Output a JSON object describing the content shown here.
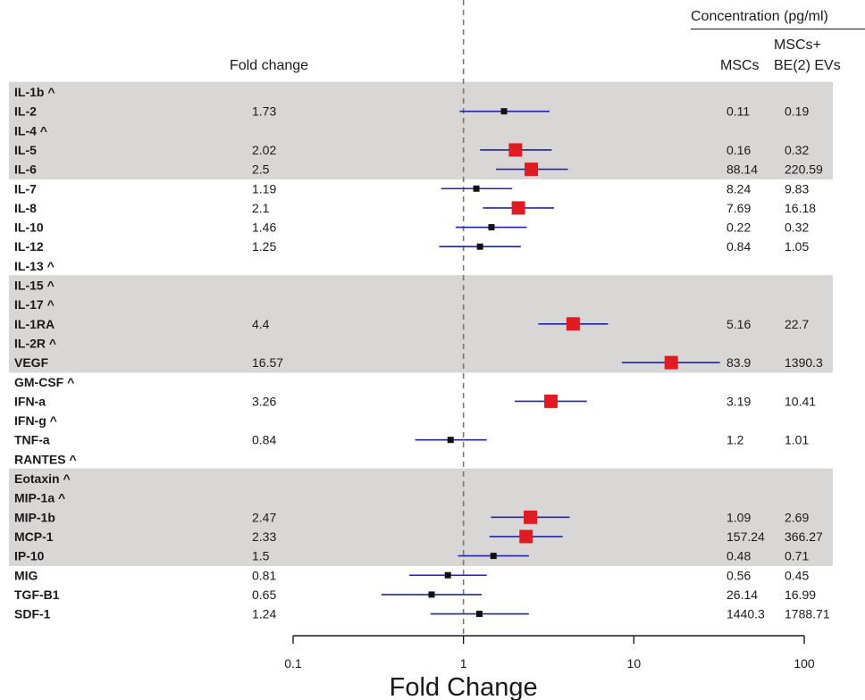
{
  "header": {
    "fold_change": "Fold change",
    "concentration": "Concentration (pg/ml)",
    "mscs": "MSCs",
    "mscs_ev_line1": "MSCs+",
    "mscs_ev_line2": "BE(2) EVs"
  },
  "colors": {
    "band": "#d9d6d6",
    "ci_line": "#1f24a8",
    "significant": "#e01b22",
    "not_significant": "#111111",
    "reference_line": "#777777"
  },
  "chart_data": {
    "type": "forest",
    "xlabel": "Fold Change",
    "x_scale": "log",
    "xlim": [
      0.1,
      100
    ],
    "xticks": [
      "0.1",
      "1",
      "10",
      "100"
    ],
    "reference_line": 1,
    "shaded_groups": [
      [
        0,
        4
      ],
      [
        10,
        14
      ],
      [
        20,
        24
      ]
    ],
    "rows": [
      {
        "label": "IL-1b ^",
        "fold": "",
        "ci": null,
        "sig": false,
        "mscs": "",
        "mscs_ev": ""
      },
      {
        "label": "IL-2",
        "fold": "1.73",
        "ci": [
          0.95,
          3.2
        ],
        "sig": false,
        "mscs": "0.11",
        "mscs_ev": "0.19"
      },
      {
        "label": "IL-4 ^",
        "fold": "",
        "ci": null,
        "sig": false,
        "mscs": "",
        "mscs_ev": ""
      },
      {
        "label": "IL-5",
        "fold": "2.02",
        "ci": [
          1.25,
          3.3
        ],
        "sig": true,
        "mscs": "0.16",
        "mscs_ev": "0.32"
      },
      {
        "label": "IL-6",
        "fold": "2.5",
        "ci": [
          1.55,
          4.1
        ],
        "sig": true,
        "mscs": "88.14",
        "mscs_ev": "220.59"
      },
      {
        "label": "IL-7",
        "fold": "1.19",
        "ci": [
          0.74,
          1.93
        ],
        "sig": false,
        "mscs": "8.24",
        "mscs_ev": "9.83"
      },
      {
        "label": "IL-8",
        "fold": "2.1",
        "ci": [
          1.3,
          3.4
        ],
        "sig": true,
        "mscs": "7.69",
        "mscs_ev": "16.18"
      },
      {
        "label": "IL-10",
        "fold": "1.46",
        "ci": [
          0.9,
          2.35
        ],
        "sig": false,
        "mscs": "0.22",
        "mscs_ev": "0.32"
      },
      {
        "label": "IL-12",
        "fold": "1.25",
        "ci": [
          0.72,
          2.17
        ],
        "sig": false,
        "mscs": "0.84",
        "mscs_ev": "1.05"
      },
      {
        "label": "IL-13 ^",
        "fold": "",
        "ci": null,
        "sig": false,
        "mscs": "",
        "mscs_ev": ""
      },
      {
        "label": "IL-15 ^",
        "fold": "",
        "ci": null,
        "sig": false,
        "mscs": "",
        "mscs_ev": ""
      },
      {
        "label": "IL-17 ^",
        "fold": "",
        "ci": null,
        "sig": false,
        "mscs": "",
        "mscs_ev": ""
      },
      {
        "label": "IL-1RA",
        "fold": "4.4",
        "ci": [
          2.75,
          7.05
        ],
        "sig": true,
        "mscs": "5.16",
        "mscs_ev": "22.7"
      },
      {
        "label": "IL-2R ^",
        "fold": "",
        "ci": null,
        "sig": false,
        "mscs": "",
        "mscs_ev": ""
      },
      {
        "label": "VEGF",
        "fold": "16.57",
        "ci": [
          8.5,
          32
        ],
        "sig": true,
        "mscs": "83.9",
        "mscs_ev": "1390.3"
      },
      {
        "label": "GM-CSF ^",
        "fold": "",
        "ci": null,
        "sig": false,
        "mscs": "",
        "mscs_ev": ""
      },
      {
        "label": "IFN-a",
        "fold": "3.26",
        "ci": [
          2.0,
          5.3
        ],
        "sig": true,
        "mscs": "3.19",
        "mscs_ev": "10.41"
      },
      {
        "label": "IFN-g ^",
        "fold": "",
        "ci": null,
        "sig": false,
        "mscs": "",
        "mscs_ev": ""
      },
      {
        "label": "TNF-a",
        "fold": "0.84",
        "ci": [
          0.52,
          1.37
        ],
        "sig": false,
        "mscs": "1.2",
        "mscs_ev": "1.01"
      },
      {
        "label": "RANTES ^",
        "fold": "",
        "ci": null,
        "sig": false,
        "mscs": "",
        "mscs_ev": ""
      },
      {
        "label": "Eotaxin ^",
        "fold": "",
        "ci": null,
        "sig": false,
        "mscs": "",
        "mscs_ev": ""
      },
      {
        "label": "MIP-1a ^",
        "fold": "",
        "ci": null,
        "sig": false,
        "mscs": "",
        "mscs_ev": ""
      },
      {
        "label": "MIP-1b",
        "fold": "2.47",
        "ci": [
          1.45,
          4.2
        ],
        "sig": true,
        "mscs": "1.09",
        "mscs_ev": "2.69"
      },
      {
        "label": "MCP-1",
        "fold": "2.33",
        "ci": [
          1.42,
          3.82
        ],
        "sig": true,
        "mscs": "157.24",
        "mscs_ev": "366.27"
      },
      {
        "label": "IP-10",
        "fold": "1.5",
        "ci": [
          0.93,
          2.42
        ],
        "sig": false,
        "mscs": "0.48",
        "mscs_ev": "0.71"
      },
      {
        "label": "MIG",
        "fold": "0.81",
        "ci": [
          0.48,
          1.37
        ],
        "sig": false,
        "mscs": "0.56",
        "mscs_ev": "0.45"
      },
      {
        "label": "TGF-B1",
        "fold": "0.65",
        "ci": [
          0.33,
          1.28
        ],
        "sig": false,
        "mscs": "26.14",
        "mscs_ev": "16.99"
      },
      {
        "label": "SDF-1",
        "fold": "1.24",
        "ci": [
          0.64,
          2.42
        ],
        "sig": false,
        "mscs": "1440.3",
        "mscs_ev": "1788.71"
      }
    ]
  }
}
